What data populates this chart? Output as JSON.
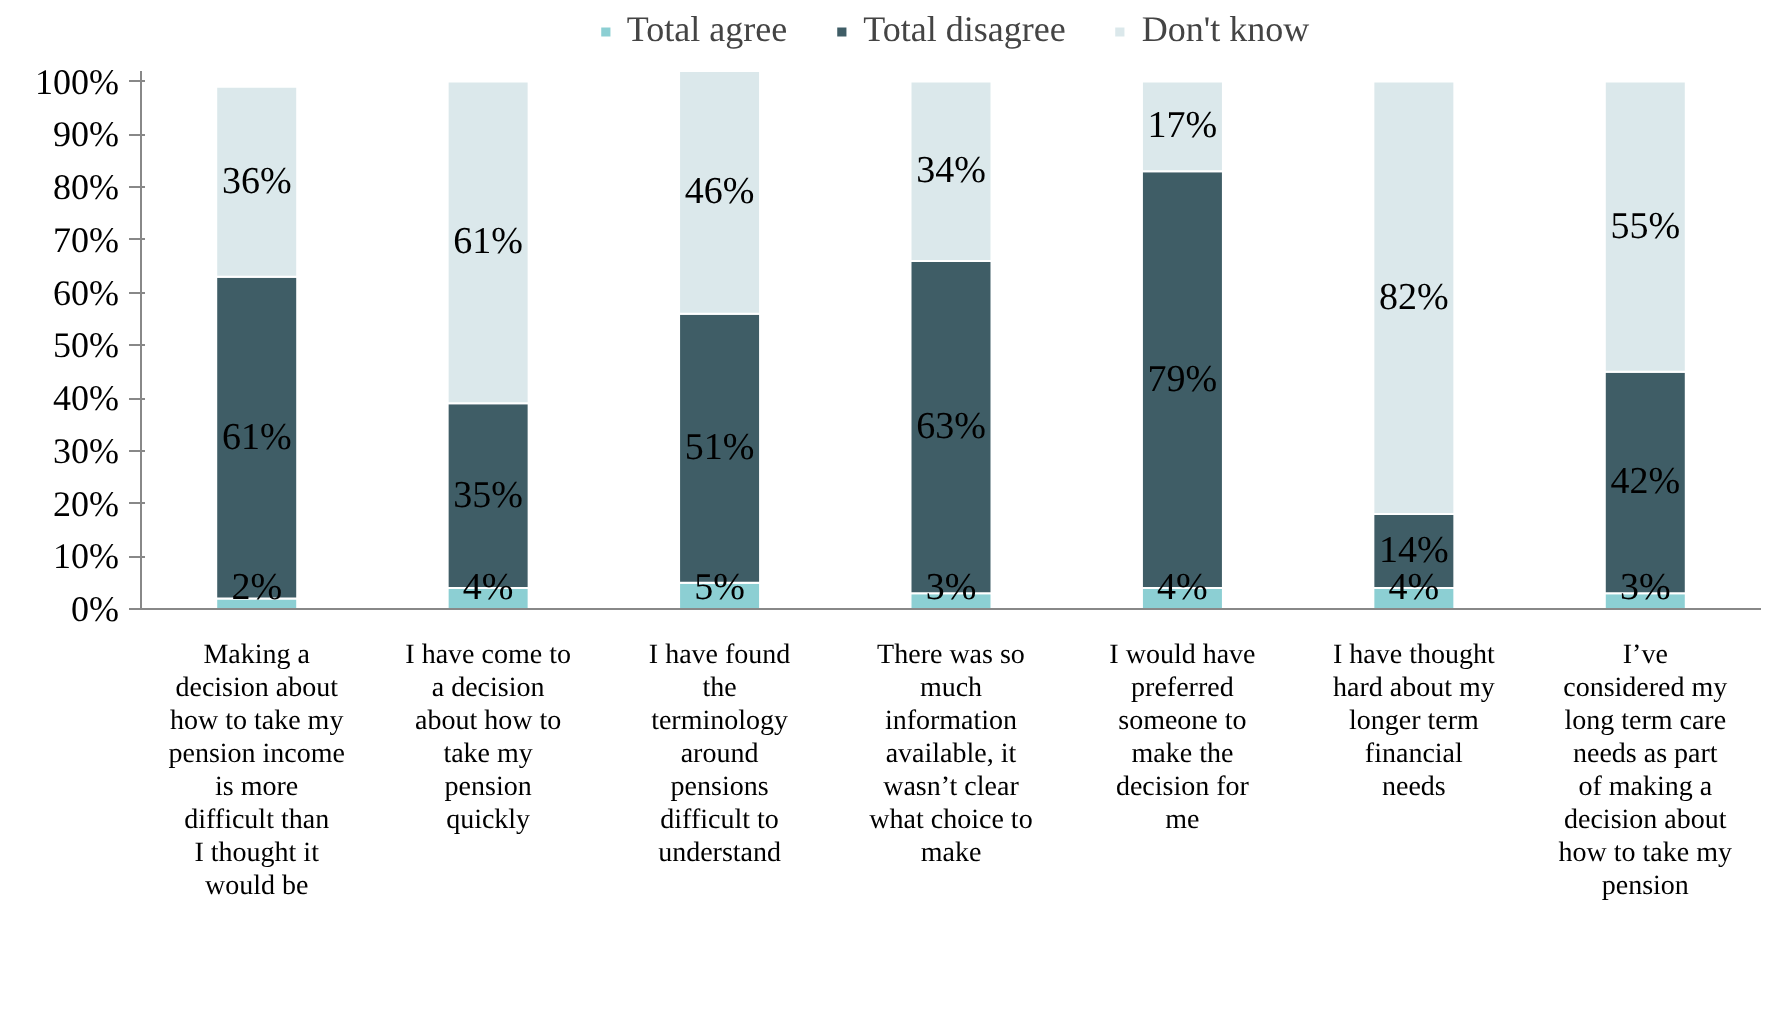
{
  "chart_data": {
    "type": "bar",
    "stacked": true,
    "categories": [
      "Making a decision about how to take my pension income is more difficult than I thought it would be",
      "I have come to a decision about how to take my pension quickly",
      "I have found the terminology around pensions difficult to understand",
      "There was so much information available, it wasn’t clear what choice to make",
      "I would have preferred someone to make the decision for me",
      "I have thought hard about my longer term financial needs",
      "I’ve considered my long term care needs as part of making a decision about how to take my pension"
    ],
    "series": [
      {
        "name": "Total agree",
        "color": "#8ccfd3",
        "values": [
          2,
          4,
          5,
          3,
          4,
          4,
          3
        ]
      },
      {
        "name": "Total disagree",
        "color": "#3f5d66",
        "values": [
          61,
          35,
          51,
          63,
          79,
          14,
          42
        ]
      },
      {
        "name": "Don't know",
        "color": "#dbe8eb",
        "values": [
          36,
          61,
          46,
          34,
          17,
          82,
          55
        ]
      }
    ],
    "ylim": [
      0,
      102
    ],
    "yticks": [
      {
        "value": 0,
        "label": "0%"
      },
      {
        "value": 10,
        "label": "10%"
      },
      {
        "value": 20,
        "label": "20%"
      },
      {
        "value": 30,
        "label": "30%"
      },
      {
        "value": 40,
        "label": "40%"
      },
      {
        "value": 50,
        "label": "50%"
      },
      {
        "value": 60,
        "label": "60%"
      },
      {
        "value": 70,
        "label": "70%"
      },
      {
        "value": 80,
        "label": "80%"
      },
      {
        "value": 90,
        "label": "90%"
      },
      {
        "value": 100,
        "label": "100%"
      }
    ],
    "value_labels": [
      [
        "2%",
        "4%",
        "5%",
        "3%",
        "4%",
        "4%",
        "3%"
      ],
      [
        "61%",
        "35%",
        "51%",
        "63%",
        "79%",
        "14%",
        "42%"
      ],
      [
        "36%",
        "61%",
        "46%",
        "34%",
        "17%",
        "82%",
        "55%"
      ]
    ],
    "legend": "top",
    "grid": false
  }
}
